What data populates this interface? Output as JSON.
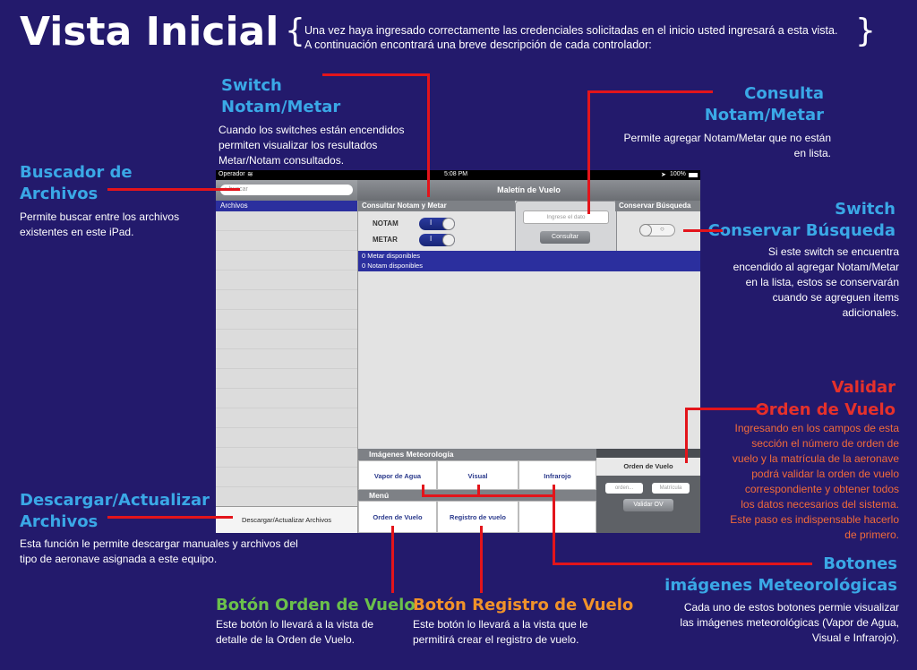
{
  "header": {
    "title": "Vista Inicial",
    "brace_open": "{",
    "brace_close": "}",
    "intro_line1": "Una vez haya ingresado correctamente las credenciales solicitadas en el inicio usted ingresará a esta vista.",
    "intro_line2": "A continuación encontrará una breve descripción de cada controlador:"
  },
  "annotations": {
    "switch_notam": {
      "title1": "Switch",
      "title2": "Notam/Metar",
      "desc": [
        "Cuando los switches están encendidos",
        "permiten visualizar los resultados",
        "Metar/Notam consultados."
      ]
    },
    "consulta": {
      "title1": "Consulta",
      "title2": "Notam/Metar",
      "desc": [
        "Permite agregar Notam/Metar que no están",
        "en lista."
      ]
    },
    "buscador": {
      "title1": "Buscador de",
      "title2": "Archivos",
      "desc": [
        "Permite buscar entre los archivos",
        "existentes en este iPad."
      ]
    },
    "conservar": {
      "title1": "Switch",
      "title2": "Conservar Búsqueda",
      "desc": [
        "Si este switch se encuentra",
        "encendido al agregar Notam/Metar",
        "en la lista, estos se conservarán",
        "cuando se agreguen items",
        "adicionales."
      ]
    },
    "validar": {
      "title1": "Validar",
      "title2": "Orden de Vuelo",
      "desc": [
        "Ingresando en los campos de esta",
        "sección el número de orden de",
        "vuelo y la matrícula de la aeronave",
        "podrá validar la orden de vuelo",
        "correspondiente y obtener todos",
        "los datos necesarios del sistema.",
        "Este paso es indispensable hacerlo",
        "de primero."
      ]
    },
    "descargar": {
      "title1": "Descargar/Actualizar",
      "title2": "Archivos",
      "desc": [
        "Esta función le permite descargar manuales y archivos del",
        "tipo de aeronave asignada a este equipo."
      ]
    },
    "botones_img": {
      "title1": "Botones",
      "title2": "imágenes Meteorológicas",
      "desc": [
        "Cada uno de estos botones permie visualizar",
        "las imágenes meteorológicas (Vapor de Agua,",
        "Visual e Infrarojo)."
      ]
    },
    "orden": {
      "title": "Botón Orden de Vuelo",
      "desc": [
        "Este botón lo llevará a la vista de",
        "detalle de la Orden de Vuelo."
      ]
    },
    "registro": {
      "title": "Botón Registro de Vuelo",
      "desc": [
        "Este botón lo llevará a la vista que le",
        "permitirá crear el registro de vuelo."
      ]
    }
  },
  "ipad": {
    "status": {
      "carrier": "Operador",
      "time": "5:08 PM",
      "battery": "100%"
    },
    "search_placeholder": "buscar",
    "sidebar_item": "Archivos",
    "download_button": "Descargar/Actualizar Archivos",
    "nav_title": "Maletín de Vuelo",
    "consult_header": "Consultar Notam y Metar",
    "notam_label": "NOTAM",
    "metar_label": "METAR",
    "switch_on_text": "I",
    "input_placeholder": "Ingrese el dato",
    "consult_button": "Consultar",
    "conservar_header": "Conservar Búsqueda",
    "metar_count": "0 Metar disponibles",
    "notam_count": "0 Notam disponibles",
    "images_header": "Imágenes Meteorología",
    "img_buttons": [
      "Vapor de Agua",
      "Visual",
      "Infrarojo"
    ],
    "menu_header": "Menú",
    "menu_buttons": [
      "Orden de Vuelo",
      "Registro de vuelo"
    ],
    "orden_header": "Orden de Vuelo",
    "orden_placeholder": "orden...",
    "matricula_placeholder": "Matrícula",
    "validar_button": "Validar OV"
  }
}
